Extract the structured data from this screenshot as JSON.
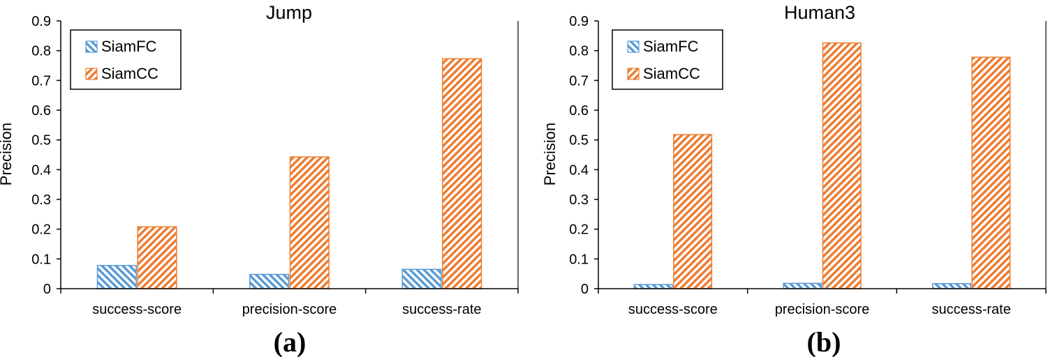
{
  "chart_data": [
    {
      "type": "bar",
      "title": "Jump",
      "panel_label": "(a)",
      "xlabel": "",
      "ylabel": "Precision",
      "ylim": [
        0,
        0.9
      ],
      "yticks": [
        "0",
        "0.1",
        "0.2",
        "0.3",
        "0.4",
        "0.5",
        "0.6",
        "0.7",
        "0.8",
        "0.9"
      ],
      "categories": [
        "success-score",
        "precision-score",
        "success-rate"
      ],
      "series": [
        {
          "name": "SiamFC",
          "values": [
            0.078,
            0.048,
            0.065
          ]
        },
        {
          "name": "SiamCC",
          "values": [
            0.208,
            0.443,
            0.773
          ]
        }
      ],
      "legend_position": "top-left",
      "grid": false
    },
    {
      "type": "bar",
      "title": "Human3",
      "panel_label": "(b)",
      "xlabel": "",
      "ylabel": "Precision",
      "ylim": [
        0,
        0.9
      ],
      "yticks": [
        "0",
        "0.1",
        "0.2",
        "0.3",
        "0.4",
        "0.5",
        "0.6",
        "0.7",
        "0.8",
        "0.9"
      ],
      "categories": [
        "success-score",
        "precision-score",
        "success-rate"
      ],
      "series": [
        {
          "name": "SiamFC",
          "values": [
            0.014,
            0.018,
            0.017
          ]
        },
        {
          "name": "SiamCC",
          "values": [
            0.518,
            0.826,
            0.778
          ]
        }
      ],
      "legend_position": "top-left",
      "grid": false
    }
  ],
  "colors": {
    "SiamFC": "#5b9bd5",
    "SiamCC": "#ed7d31",
    "axis": "#000000"
  }
}
